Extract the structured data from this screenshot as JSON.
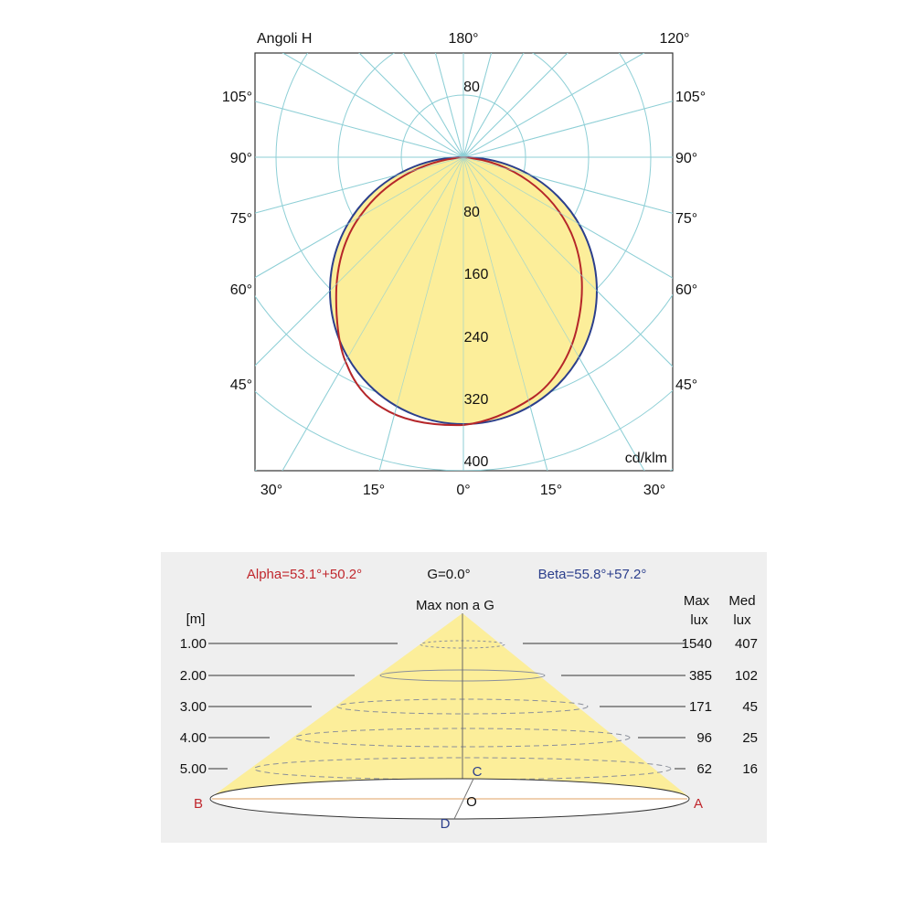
{
  "polar": {
    "title": "Angoli H",
    "unit": "cd/klm",
    "top_labels": [
      "180°",
      "120°"
    ],
    "left_angles": [
      "105°",
      "90°",
      "75°",
      "60°",
      "45°"
    ],
    "right_angles": [
      "105°",
      "90°",
      "75°",
      "60°",
      "45°"
    ],
    "bottom_angles": [
      "30°",
      "15°",
      "0°",
      "15°",
      "30°"
    ],
    "radial_upper": "80",
    "radial_lower": [
      "80",
      "160",
      "240",
      "320",
      "400"
    ],
    "colors": {
      "grid": "#8ecfd6",
      "fill": "#fcee9a",
      "curve_c0": "#b5262a",
      "curve_c90": "#2c3f8c"
    }
  },
  "cone": {
    "alpha": "Alpha=53.1°+50.2°",
    "gamma": "G=0.0°",
    "beta": "Beta=55.8°+57.2°",
    "max_label": "Max non a G",
    "unit_m": "[m]",
    "max_header": [
      "Max",
      "lux"
    ],
    "med_header": [
      "Med",
      "lux"
    ],
    "rows": [
      {
        "h": "1.00",
        "max": "1540",
        "med": "407"
      },
      {
        "h": "2.00",
        "max": "385",
        "med": "102"
      },
      {
        "h": "3.00",
        "max": "171",
        "med": "45"
      },
      {
        "h": "4.00",
        "max": "96",
        "med": "25"
      },
      {
        "h": "5.00",
        "max": "62",
        "med": "16"
      }
    ],
    "points": {
      "a": "A",
      "b": "B",
      "c": "C",
      "d": "D",
      "o": "O"
    },
    "colors": {
      "alpha": "#c0272d",
      "beta": "#2c3f8c",
      "cone": "#fcee9a",
      "panel": "#efefef"
    }
  }
}
